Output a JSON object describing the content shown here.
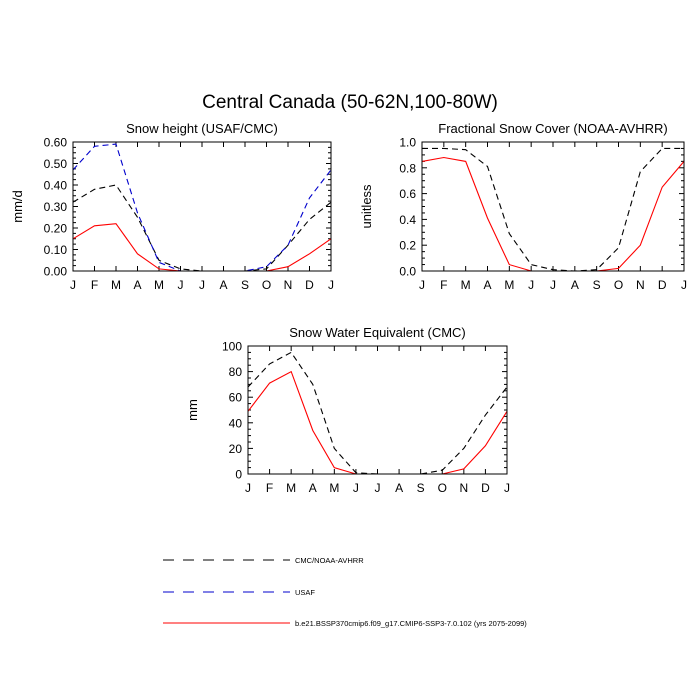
{
  "title": "Central Canada (50-62N,100-80W)",
  "months": [
    "J",
    "F",
    "M",
    "A",
    "M",
    "J",
    "J",
    "A",
    "S",
    "O",
    "N",
    "D",
    "J"
  ],
  "colors": {
    "obs": "#000000",
    "usaf": "#0000cc",
    "model": "#ff0000"
  },
  "legend": [
    {
      "label": "CMC/NOAA-AVHRR",
      "style": "dashed",
      "color": "#000000"
    },
    {
      "label": "USAF",
      "style": "dashed",
      "color": "#0000cc"
    },
    {
      "label": "b.e21.BSSP370cmip6.f09_g17.CMIP6-SSP3-7.0.102 (yrs 2075-2099)",
      "style": "solid",
      "color": "#ff0000"
    }
  ],
  "chart_data": [
    {
      "type": "line",
      "title": "Snow height (USAF/CMC)",
      "ylabel": "mm/d",
      "ylim": [
        0,
        0.6
      ],
      "yticks": [
        "0.00",
        "0.10",
        "0.20",
        "0.30",
        "0.40",
        "0.50",
        "0.60"
      ],
      "categories": [
        "J",
        "F",
        "M",
        "A",
        "M",
        "J",
        "J",
        "A",
        "S",
        "O",
        "N",
        "D",
        "J"
      ],
      "series": [
        {
          "name": "CMC/NOAA-AVHRR",
          "values": [
            0.32,
            0.38,
            0.4,
            0.25,
            0.05,
            0.01,
            0.0,
            0.0,
            0.0,
            0.01,
            0.12,
            0.24,
            0.32
          ]
        },
        {
          "name": "USAF",
          "values": [
            0.47,
            0.58,
            0.59,
            0.27,
            0.04,
            0.0,
            0.0,
            0.0,
            0.0,
            0.02,
            0.12,
            0.34,
            0.47
          ]
        },
        {
          "name": "b.e21.BSSP370cmip6.f09_g17.CMIP6-SSP3-7.0.102 (yrs 2075-2099)",
          "values": [
            0.15,
            0.21,
            0.22,
            0.08,
            0.01,
            0.0,
            0.0,
            0.0,
            0.0,
            0.0,
            0.02,
            0.08,
            0.15
          ]
        }
      ]
    },
    {
      "type": "line",
      "title": "Fractional Snow Cover (NOAA-AVHRR)",
      "ylabel": "unitless",
      "ylim": [
        0,
        1.0
      ],
      "yticks": [
        "0.0",
        "0.2",
        "0.4",
        "0.6",
        "0.8",
        "1.0"
      ],
      "categories": [
        "J",
        "F",
        "M",
        "A",
        "M",
        "J",
        "J",
        "A",
        "S",
        "O",
        "N",
        "D",
        "J"
      ],
      "series": [
        {
          "name": "CMC/NOAA-AVHRR",
          "values": [
            0.95,
            0.95,
            0.94,
            0.81,
            0.29,
            0.05,
            0.01,
            0.0,
            0.01,
            0.18,
            0.77,
            0.95,
            0.95
          ]
        },
        {
          "name": "b.e21.BSSP370cmip6.f09_g17.CMIP6-SSP3-7.0.102 (yrs 2075-2099)",
          "values": [
            0.85,
            0.88,
            0.85,
            0.41,
            0.05,
            0.0,
            0.0,
            0.0,
            0.0,
            0.02,
            0.2,
            0.65,
            0.85
          ]
        }
      ]
    },
    {
      "type": "line",
      "title": "Snow Water Equivalent (CMC)",
      "ylabel": "mm",
      "ylim": [
        0,
        100
      ],
      "yticks": [
        "0",
        "20",
        "40",
        "60",
        "80",
        "100"
      ],
      "categories": [
        "J",
        "F",
        "M",
        "A",
        "M",
        "J",
        "J",
        "A",
        "S",
        "O",
        "N",
        "D",
        "J"
      ],
      "series": [
        {
          "name": "CMC/NOAA-AVHRR",
          "values": [
            68,
            86,
            95,
            70,
            20,
            1,
            0,
            0,
            0,
            3,
            20,
            46,
            68
          ]
        },
        {
          "name": "b.e21.BSSP370cmip6.f09_g17.CMIP6-SSP3-7.0.102 (yrs 2075-2099)",
          "values": [
            49,
            71,
            80,
            34,
            5,
            0,
            0,
            0,
            0,
            0,
            4,
            22,
            49
          ]
        }
      ]
    }
  ]
}
